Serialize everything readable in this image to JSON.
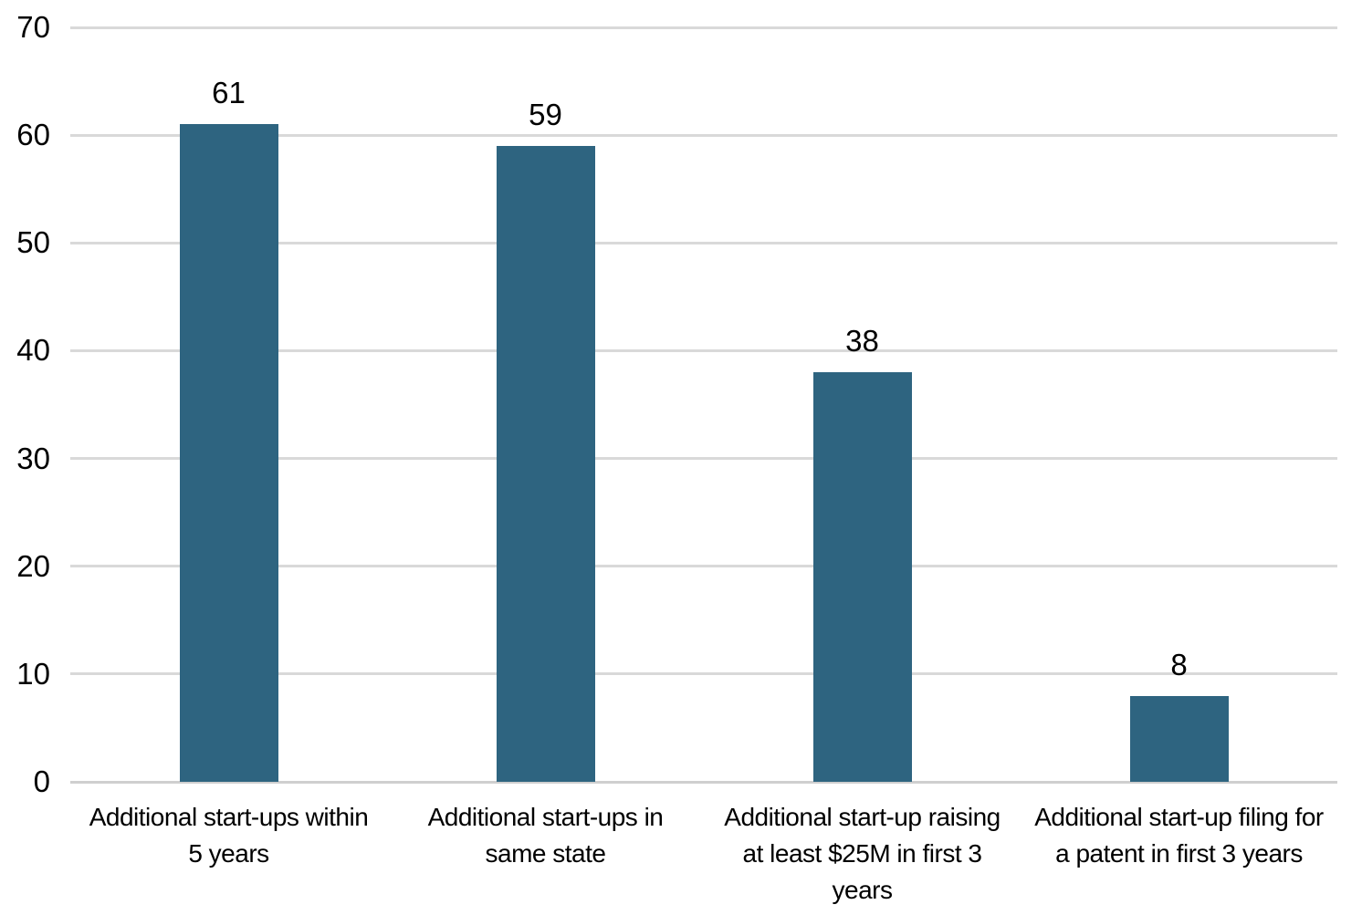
{
  "chart_data": {
    "type": "bar",
    "title": "",
    "xlabel": "",
    "ylabel": "",
    "categories": [
      "Additional start-ups within\n5 years",
      "Additional start-ups in\nsame state",
      "Additional start-up raising\nat least $25M in first 3\nyears",
      "Additional start-up filing for\na patent in first 3 years"
    ],
    "values": [
      61,
      59,
      38,
      8
    ],
    "data_labels": [
      "61",
      "59",
      "38",
      "8"
    ],
    "ylim": [
      0,
      70
    ],
    "yticks": [
      0,
      10,
      20,
      30,
      40,
      50,
      60,
      70
    ],
    "grid": true,
    "legend": "none",
    "colors": {
      "bar": "#2E6480",
      "gridline": "#D9D9D9",
      "axis_line": "#CFCFCF",
      "text": "#000000",
      "background": "#FFFFFF"
    }
  }
}
